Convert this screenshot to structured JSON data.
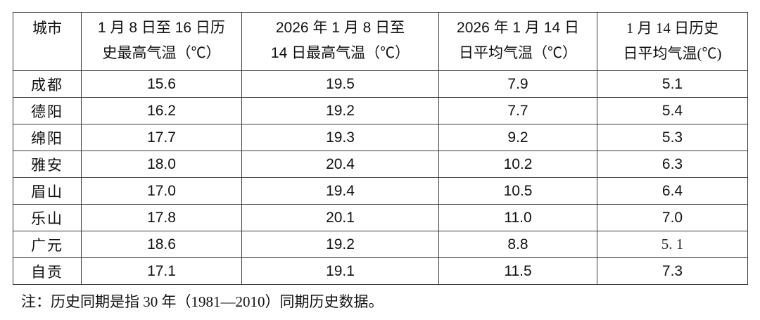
{
  "colors": {
    "background": "#ffffff",
    "text": "#111111",
    "border": "#3b3b3b"
  },
  "note": "注：历史同期是指 30 年（1981—2010）同期历史数据。",
  "chart_data": {
    "type": "table",
    "columns": [
      "城市",
      "1 月 8 日至 16 日历\n史最高气温（℃）",
      "2026 年 1 月 8 日至\n14 日最高气温（℃）",
      "2026 年 1 月 14 日\n日平均气温（℃）",
      "1 月 14 日历史\n日平均气温(℃)",
      ""
    ],
    "rows": [
      [
        "成都",
        "15.6",
        "19.5",
        "7.9",
        "5.1"
      ],
      [
        "德阳",
        "16.2",
        "19.2",
        "7.7",
        "5.4"
      ],
      [
        "绵阳",
        "17.7",
        "19.3",
        "9.2",
        "5.3"
      ],
      [
        "雅安",
        "18.0",
        "20.4",
        "10.2",
        "6.3"
      ],
      [
        "眉山",
        "17.0",
        "19.4",
        "10.5",
        "6.4"
      ],
      [
        "乐山",
        "17.8",
        "20.1",
        "11.0",
        "7.0"
      ],
      [
        "广元",
        "18.6",
        "19.2",
        "8.8",
        "5. 1"
      ],
      [
        "自贡",
        "17.1",
        "19.1",
        "11.5",
        "7.3"
      ]
    ],
    "note": "注：历史同期是指 30 年（1981—2010）同期历史数据。"
  }
}
